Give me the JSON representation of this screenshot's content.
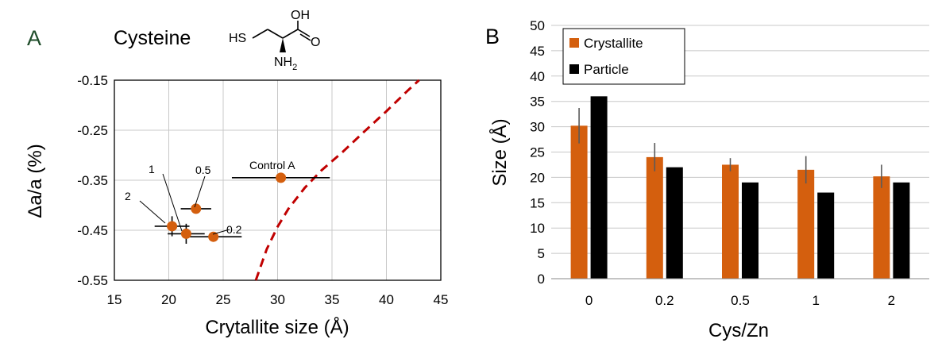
{
  "panels": {
    "a": {
      "letter": "A",
      "molecule_name": "Cysteine",
      "structure": {
        "oh": "OH",
        "o": "O",
        "hs": "HS",
        "nh2": "NH",
        "nh2_sub": "2"
      }
    },
    "b": {
      "letter": "B"
    }
  },
  "colors": {
    "crystallite": "#d45f0e",
    "particle": "#000000",
    "fit_curve": "#c00000",
    "grid": "#c8c8c8"
  },
  "chart_data": [
    {
      "type": "scatter",
      "xlabel": "Crytallite size (Å)",
      "ylabel": "Δa/a (%)",
      "xlim": [
        15,
        45
      ],
      "ylim": [
        -0.55,
        -0.15
      ],
      "xticks": [
        "15",
        "20",
        "25",
        "30",
        "35",
        "40",
        "45"
      ],
      "yticks": [
        "-0.15",
        "-0.25",
        "-0.35",
        "-0.45",
        "-0.55"
      ],
      "grid": true,
      "points": [
        {
          "label": "2",
          "x": 20.3,
          "y": -0.442,
          "xerr": 1.6,
          "yerr": 0.02
        },
        {
          "label": "1",
          "x": 21.6,
          "y": -0.457,
          "xerr": 1.7,
          "yerr": 0.02
        },
        {
          "label": "0.5",
          "x": 22.5,
          "y": -0.407,
          "xerr": 1.4,
          "yerr": 0
        },
        {
          "label": "0.2",
          "x": 24.1,
          "y": -0.463,
          "xerr": 2.6,
          "yerr": 0
        },
        {
          "label": "Control A",
          "x": 30.3,
          "y": -0.345,
          "xerr": 4.5,
          "yerr": 0
        }
      ],
      "fit_curve": {
        "style": "dashed",
        "points": [
          [
            28.0,
            -0.55
          ],
          [
            29.0,
            -0.488
          ],
          [
            30.0,
            -0.443
          ],
          [
            31.0,
            -0.407
          ],
          [
            32.5,
            -0.365
          ],
          [
            34.0,
            -0.331
          ],
          [
            36.0,
            -0.293
          ],
          [
            38.0,
            -0.252
          ],
          [
            40.0,
            -0.212
          ],
          [
            42.0,
            -0.17
          ],
          [
            43.0,
            -0.15
          ]
        ]
      }
    },
    {
      "type": "bar",
      "xlabel": "Cys/Zn",
      "ylabel": "Size (Å)",
      "categories": [
        "0",
        "0.2",
        "0.5",
        "1",
        "2"
      ],
      "ylim": [
        0,
        50
      ],
      "yticks": [
        "0",
        "5",
        "10",
        "15",
        "20",
        "25",
        "30",
        "35",
        "40",
        "45",
        "50"
      ],
      "grid": true,
      "legend_position": "top-left",
      "series": [
        {
          "name": "Crystallite",
          "values": [
            30.2,
            24.0,
            22.5,
            21.5,
            20.2
          ],
          "errors": [
            3.5,
            2.8,
            1.3,
            2.7,
            2.3
          ]
        },
        {
          "name": "Particle",
          "values": [
            36,
            22,
            19,
            17,
            19
          ]
        }
      ]
    }
  ]
}
